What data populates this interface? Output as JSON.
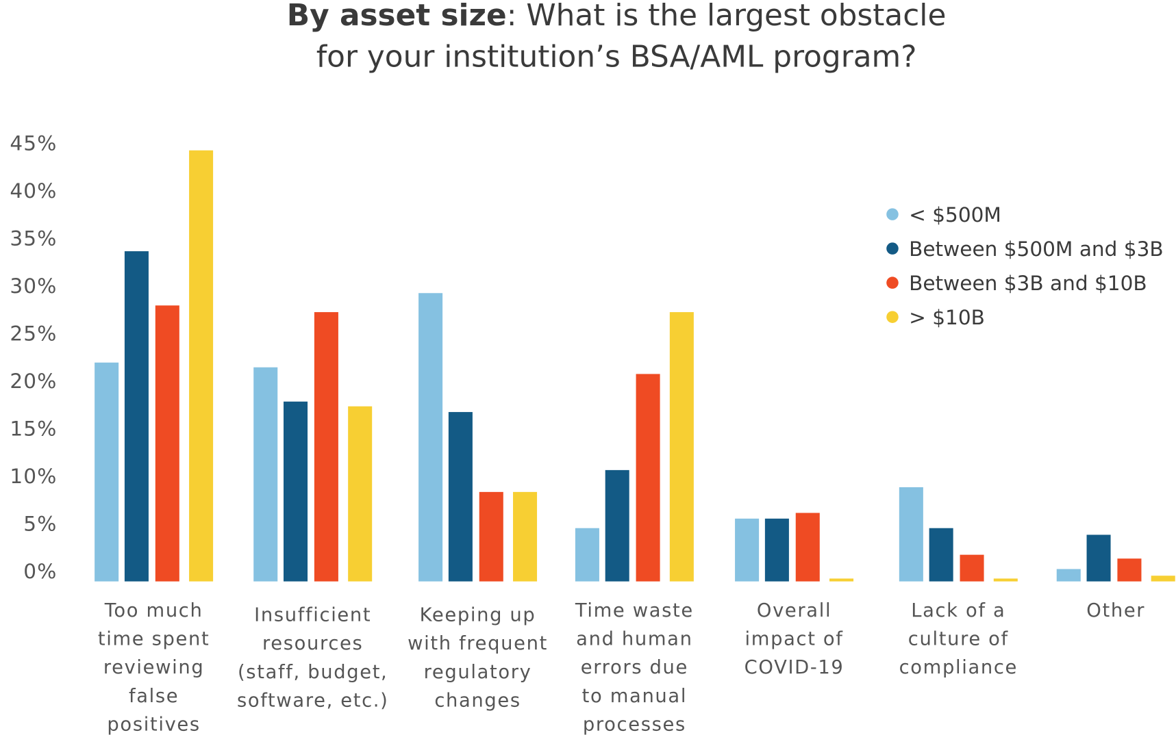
{
  "chart_data": {
    "type": "bar",
    "title_bold": "By asset size",
    "title_rest_line1": ": What is the largest obstacle",
    "title_line2": "for your institution’s BSA/AML program?",
    "xlabel": "",
    "ylabel": "",
    "ylim": [
      0,
      45
    ],
    "y_ticks": [
      "0%",
      "5%",
      "10%",
      "15%",
      "20%",
      "25%",
      "30%",
      "35%",
      "40%",
      "45%"
    ],
    "grid": false,
    "legend_position": "top-right",
    "categories": [
      [
        "Too much",
        "time spent",
        "reviewing",
        "false",
        "positives"
      ],
      [
        "Insufficient",
        "resources",
        "(staff, budget,",
        "software, etc.)"
      ],
      [
        "Keeping up",
        "with frequent",
        "regulatory",
        "changes"
      ],
      [
        "Time waste",
        "and human",
        "errors due",
        "to manual",
        "processes"
      ],
      [
        "Overall",
        "impact of",
        "COVID-19"
      ],
      [
        "Lack of a",
        "culture of",
        "compliance"
      ],
      [
        "Other"
      ]
    ],
    "series": [
      {
        "name": "< $500M",
        "color": "#85C1E1",
        "values": [
          23,
          22.5,
          30.3,
          5.6,
          6.6,
          9.9,
          1.3
        ]
      },
      {
        "name": "Between $500M and $3B",
        "color": "#135A85",
        "values": [
          34.7,
          18.9,
          17.8,
          11.7,
          6.6,
          5.6,
          4.9
        ]
      },
      {
        "name": "Between $3B and $10B",
        "color": "#EF4B23",
        "values": [
          29,
          28.3,
          9.4,
          21.8,
          7.2,
          2.8,
          2.4
        ]
      },
      {
        "name": "> $10B",
        "color": "#F7CF33",
        "values": [
          45.3,
          18.4,
          9.4,
          28.3,
          0.3,
          0.3,
          0.6
        ]
      }
    ]
  }
}
